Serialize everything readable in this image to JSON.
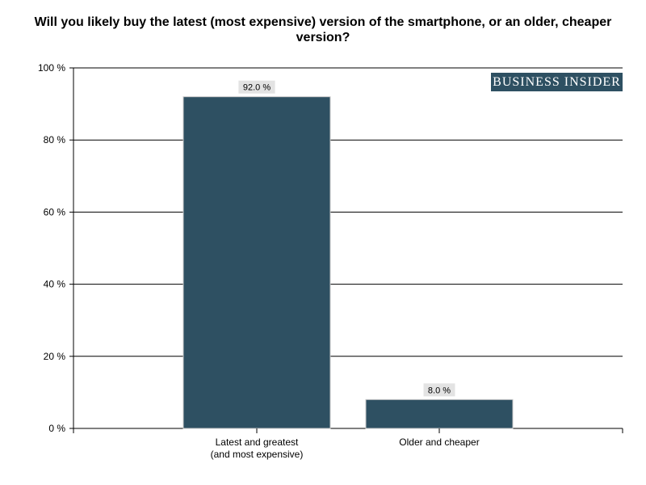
{
  "chart_data": {
    "type": "bar",
    "title": "Will you likely buy the latest (most expensive) version of the smartphone, or an older, cheaper version?",
    "categories": [
      "Latest and greatest\n(and most expensive)",
      "Older and cheaper"
    ],
    "values": [
      92.0,
      8.0
    ],
    "data_labels": [
      "92.0 %",
      "8.0 %"
    ],
    "yticks": [
      "0 %",
      "20 %",
      "40 %",
      "60 %",
      "80 %",
      "100 %"
    ],
    "ylim": [
      0,
      100
    ],
    "xlabel": "",
    "ylabel": "",
    "grid": true,
    "bar_color": "#2e5062",
    "label_bg_color": "#e3e3e3"
  },
  "branding": {
    "logo_text": "BUSINESS INSIDER",
    "logo_color": "#2e5062"
  }
}
